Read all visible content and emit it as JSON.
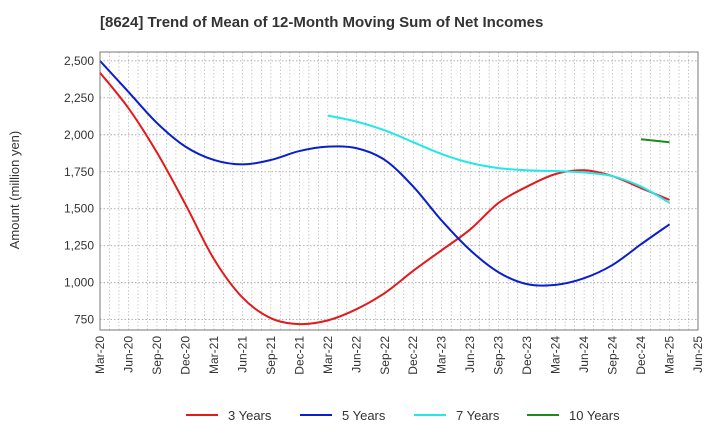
{
  "chart_data": {
    "type": "line",
    "title": "[8624]  Trend of Mean of 12-Month Moving Sum of Net Incomes",
    "xlabel": "",
    "ylabel": "Amount (million yen)",
    "ylim": [
      680,
      2560
    ],
    "yticks": [
      750,
      1000,
      1250,
      1500,
      1750,
      2000,
      2250,
      2500
    ],
    "ytick_labels": [
      "750",
      "1,000",
      "1,250",
      "1,500",
      "1,750",
      "2,000",
      "2,250",
      "2,500"
    ],
    "xlim": [
      "2020-03",
      "2025-06"
    ],
    "xticks": [
      "2020-03",
      "2020-06",
      "2020-09",
      "2020-12",
      "2021-03",
      "2021-06",
      "2021-09",
      "2021-12",
      "2022-03",
      "2022-06",
      "2022-09",
      "2022-12",
      "2023-03",
      "2023-06",
      "2023-09",
      "2023-12",
      "2024-03",
      "2024-06",
      "2024-09",
      "2024-12",
      "2025-03",
      "2025-06"
    ],
    "xtick_labels": [
      "Mar-20",
      "Jun-20",
      "Sep-20",
      "Dec-20",
      "Mar-21",
      "Jun-21",
      "Sep-21",
      "Dec-21",
      "Mar-22",
      "Jun-22",
      "Sep-22",
      "Dec-22",
      "Mar-23",
      "Jun-23",
      "Sep-23",
      "Dec-23",
      "Mar-24",
      "Jun-24",
      "Sep-24",
      "Dec-24",
      "Mar-25",
      "Jun-25"
    ],
    "grid": true,
    "legend_position": "bottom",
    "series": [
      {
        "name": "3 Years",
        "color": "#e31a1c",
        "points": [
          [
            "2020-03",
            2420
          ],
          [
            "2020-06",
            2180
          ],
          [
            "2020-09",
            1880
          ],
          [
            "2020-12",
            1530
          ],
          [
            "2021-03",
            1160
          ],
          [
            "2021-06",
            900
          ],
          [
            "2021-09",
            760
          ],
          [
            "2021-12",
            720
          ],
          [
            "2022-03",
            745
          ],
          [
            "2022-06",
            820
          ],
          [
            "2022-09",
            930
          ],
          [
            "2022-12",
            1080
          ],
          [
            "2023-03",
            1220
          ],
          [
            "2023-06",
            1360
          ],
          [
            "2023-09",
            1540
          ],
          [
            "2023-12",
            1650
          ],
          [
            "2024-03",
            1735
          ],
          [
            "2024-06",
            1760
          ],
          [
            "2024-09",
            1720
          ],
          [
            "2024-12",
            1640
          ],
          [
            "2025-03",
            1560
          ]
        ]
      },
      {
        "name": "5 Years",
        "color": "#0a1ecc",
        "points": [
          [
            "2020-03",
            2500
          ],
          [
            "2020-06",
            2290
          ],
          [
            "2020-09",
            2080
          ],
          [
            "2020-12",
            1920
          ],
          [
            "2021-03",
            1830
          ],
          [
            "2021-06",
            1800
          ],
          [
            "2021-09",
            1830
          ],
          [
            "2021-12",
            1890
          ],
          [
            "2022-03",
            1920
          ],
          [
            "2022-06",
            1910
          ],
          [
            "2022-09",
            1830
          ],
          [
            "2022-12",
            1650
          ],
          [
            "2023-03",
            1420
          ],
          [
            "2023-06",
            1220
          ],
          [
            "2023-09",
            1070
          ],
          [
            "2023-12",
            990
          ],
          [
            "2024-03",
            985
          ],
          [
            "2024-06",
            1030
          ],
          [
            "2024-09",
            1120
          ],
          [
            "2024-12",
            1260
          ],
          [
            "2025-03",
            1395
          ]
        ]
      },
      {
        "name": "7 Years",
        "color": "#22e8e8",
        "points": [
          [
            "2022-03",
            2130
          ],
          [
            "2022-06",
            2090
          ],
          [
            "2022-09",
            2030
          ],
          [
            "2022-12",
            1950
          ],
          [
            "2023-03",
            1870
          ],
          [
            "2023-06",
            1810
          ],
          [
            "2023-09",
            1775
          ],
          [
            "2023-12",
            1760
          ],
          [
            "2024-03",
            1755
          ],
          [
            "2024-06",
            1745
          ],
          [
            "2024-09",
            1720
          ],
          [
            "2024-12",
            1650
          ],
          [
            "2025-03",
            1540
          ]
        ]
      },
      {
        "name": "10 Years",
        "color": "#1e8a1e",
        "points": [
          [
            "2024-12",
            1970
          ],
          [
            "2025-03",
            1950
          ]
        ]
      }
    ]
  }
}
